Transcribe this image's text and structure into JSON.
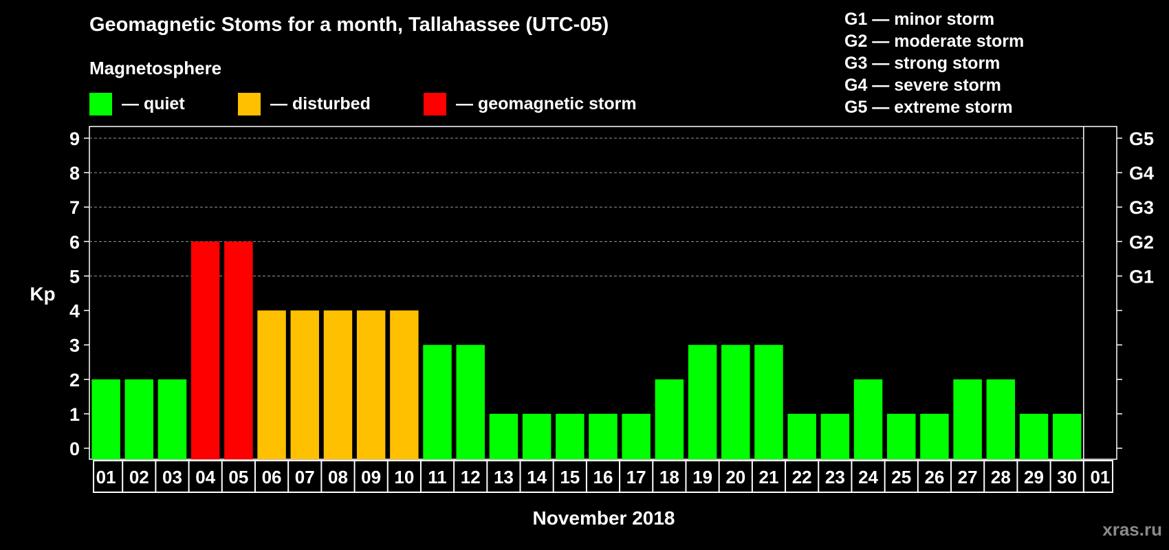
{
  "title": "Geomagnetic Stoms for a month, Tallahassee (UTC-05)",
  "legend": {
    "heading": "Magnetosphere",
    "items": [
      {
        "key": "quiet",
        "label": "— quiet",
        "color": "#00ff00"
      },
      {
        "key": "disturbed",
        "label": "— disturbed",
        "color": "#ffc000"
      },
      {
        "key": "storm",
        "label": "— geomagnetic storm",
        "color": "#ff0000"
      }
    ]
  },
  "g_scale_legend": [
    "G1 — minor storm",
    "G2 — moderate storm",
    "G3 — strong storm",
    "G4 — severe storm",
    "G5 — extreme storm"
  ],
  "watermark": "xras.ru",
  "chart_data": {
    "type": "bar",
    "xlabel": "November 2018",
    "ylabel": "Kp",
    "ylim": [
      0,
      9
    ],
    "yticks": [
      "0",
      "1",
      "2",
      "3",
      "4",
      "5",
      "6",
      "7",
      "8",
      "9"
    ],
    "right_ticks": [
      {
        "kp": 5,
        "label": "G1"
      },
      {
        "kp": 6,
        "label": "G2"
      },
      {
        "kp": 7,
        "label": "G3"
      },
      {
        "kp": 8,
        "label": "G4"
      },
      {
        "kp": 9,
        "label": "G5"
      }
    ],
    "categories": [
      "01",
      "02",
      "03",
      "04",
      "05",
      "06",
      "07",
      "08",
      "09",
      "10",
      "11",
      "12",
      "13",
      "14",
      "15",
      "16",
      "17",
      "18",
      "19",
      "20",
      "21",
      "22",
      "23",
      "24",
      "25",
      "26",
      "27",
      "28",
      "29",
      "30",
      "01"
    ],
    "values": [
      2,
      2,
      2,
      6,
      6,
      4,
      4,
      4,
      4,
      4,
      3,
      3,
      1,
      1,
      1,
      1,
      1,
      2,
      3,
      3,
      3,
      1,
      1,
      2,
      1,
      1,
      2,
      2,
      1,
      1,
      null
    ],
    "grid": "dashed horizontal lines at Kp 5-9"
  }
}
